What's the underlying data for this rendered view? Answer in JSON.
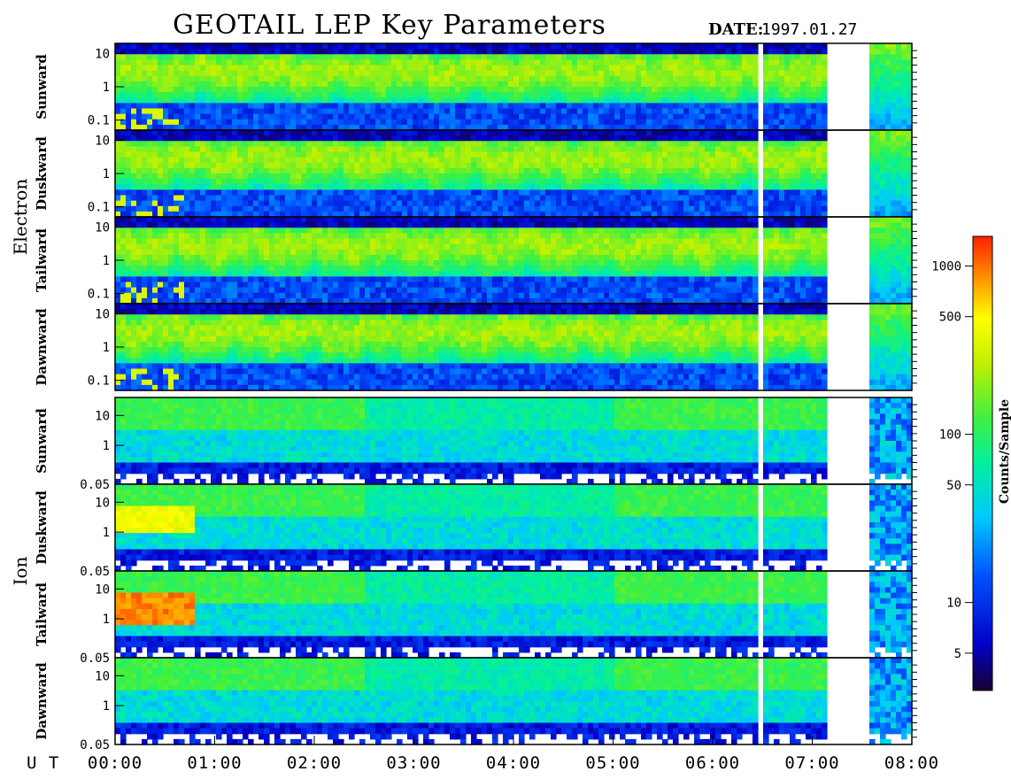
{
  "header": {
    "title": "GEOTAIL LEP Key Parameters",
    "date_label": "DATE:",
    "date_value": "1997.01.27"
  },
  "colors": {
    "background": "#ffffff",
    "frame": "#000000",
    "colormap": [
      "#1a0030",
      "#0000c8",
      "#0050ff",
      "#00c8ff",
      "#00f0a0",
      "#40f040",
      "#c0f000",
      "#ffff00",
      "#ff9000",
      "#ff2000"
    ]
  },
  "chart_data": {
    "type": "heatmap",
    "title": "GEOTAIL LEP Key Parameters",
    "x_label_prefix": "U T",
    "x_ticks": [
      "00:00",
      "01:00",
      "02:00",
      "03:00",
      "04:00",
      "05:00",
      "06:00",
      "07:00",
      "08:00"
    ],
    "xlim": [
      0,
      8
    ],
    "data_gaps_hours": [
      [
        7.12,
        7.6
      ]
    ],
    "groups": [
      {
        "species": "Electron",
        "panels": [
          {
            "direction": "Sunward",
            "y_ticks": [
              "10",
              "1",
              "0.1"
            ],
            "ylim": [
              0.05,
              20
            ],
            "log": true
          },
          {
            "direction": "Duskward",
            "y_ticks": [
              "10",
              "1",
              "0.1"
            ],
            "ylim": [
              0.05,
              20
            ],
            "log": true
          },
          {
            "direction": "Tailward",
            "y_ticks": [
              "10",
              "1",
              "0.1"
            ],
            "ylim": [
              0.05,
              20
            ],
            "log": true
          },
          {
            "direction": "Dawnward",
            "y_ticks": [
              "10",
              "1",
              "0.1"
            ],
            "ylim": [
              0.05,
              20
            ],
            "log": true
          }
        ]
      },
      {
        "species": "Ion",
        "panels": [
          {
            "direction": "Sunward",
            "y_ticks": [
              "10",
              "1",
              "0.05"
            ],
            "ylim": [
              0.05,
              40
            ],
            "log": true
          },
          {
            "direction": "Duskward",
            "y_ticks": [
              "10",
              "1",
              "0.05"
            ],
            "ylim": [
              0.05,
              40
            ],
            "log": true
          },
          {
            "direction": "Tailward",
            "y_ticks": [
              "10",
              "1",
              "0.05"
            ],
            "ylim": [
              0.05,
              40
            ],
            "log": true
          },
          {
            "direction": "Dawnward",
            "y_ticks": [
              "10",
              "1",
              "0.05"
            ],
            "ylim": [
              0.05,
              40
            ],
            "log": true
          }
        ]
      }
    ],
    "colorbar": {
      "label": "Counts/Sample",
      "scale": "log",
      "range": [
        3,
        1500
      ],
      "ticks": [
        {
          "value": 1000,
          "label": "1000"
        },
        {
          "value": 500,
          "label": "500"
        },
        {
          "value": 100,
          "label": "100"
        },
        {
          "value": 50,
          "label": "50"
        },
        {
          "value": 10,
          "label": "10"
        },
        {
          "value": 5,
          "label": "5"
        }
      ]
    }
  }
}
